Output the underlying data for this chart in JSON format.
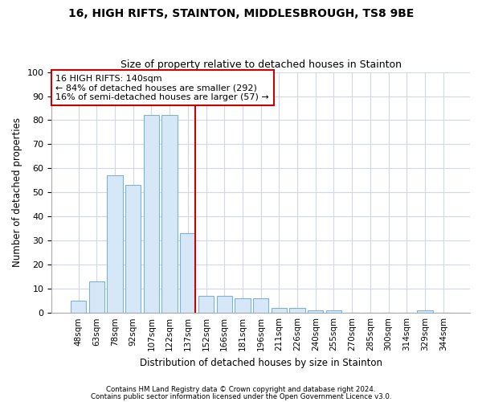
{
  "title1": "16, HIGH RIFTS, STAINTON, MIDDLESBROUGH, TS8 9BE",
  "title2": "Size of property relative to detached houses in Stainton",
  "xlabel": "Distribution of detached houses by size in Stainton",
  "ylabel": "Number of detached properties",
  "footer1": "Contains HM Land Registry data © Crown copyright and database right 2024.",
  "footer2": "Contains public sector information licensed under the Open Government Licence v3.0.",
  "categories": [
    "48sqm",
    "63sqm",
    "78sqm",
    "92sqm",
    "107sqm",
    "122sqm",
    "137sqm",
    "152sqm",
    "166sqm",
    "181sqm",
    "196sqm",
    "211sqm",
    "226sqm",
    "240sqm",
    "255sqm",
    "270sqm",
    "285sqm",
    "300sqm",
    "314sqm",
    "329sqm",
    "344sqm"
  ],
  "values": [
    5,
    13,
    57,
    53,
    82,
    82,
    33,
    7,
    7,
    6,
    6,
    2,
    2,
    1,
    1,
    0,
    0,
    0,
    0,
    1,
    0
  ],
  "bar_color": "#d6e8f7",
  "bar_edge_color": "#7ab3d4",
  "marker_label": "16 HIGH RIFTS: 140sqm",
  "marker_line1": "← 84% of detached houses are smaller (292)",
  "marker_line2": "16% of semi-detached houses are larger (57) →",
  "marker_color": "#cc0000",
  "ylim": [
    0,
    100
  ],
  "yticks": [
    0,
    10,
    20,
    30,
    40,
    50,
    60,
    70,
    80,
    90,
    100
  ],
  "background_color": "#ffffff",
  "grid_color": "#d0d8e8"
}
